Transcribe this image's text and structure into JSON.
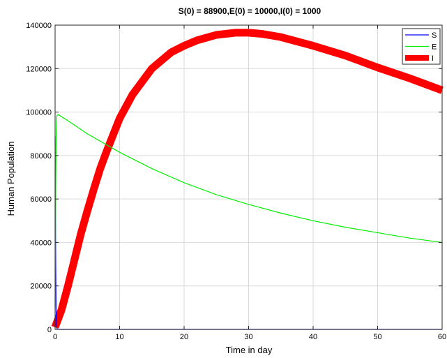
{
  "chart_data": {
    "type": "line",
    "title": "S(0) = 88900,E(0) = 10000,I(0) = 1000",
    "xlabel": "Time in day",
    "ylabel": "Human Population",
    "xlim": [
      0,
      60
    ],
    "ylim": [
      0,
      140000
    ],
    "xticks": [
      0,
      10,
      20,
      30,
      40,
      50,
      60
    ],
    "yticks": [
      0,
      20000,
      40000,
      60000,
      80000,
      100000,
      120000,
      140000
    ],
    "grid": true,
    "legend_position": "top-right",
    "series": [
      {
        "name": "S",
        "color": "#0000ff",
        "line_weight": "thin",
        "x": [
          0,
          0.05,
          0.1,
          0.15,
          0.2,
          0.3,
          0.5,
          1,
          5,
          10,
          20,
          30,
          40,
          50,
          60
        ],
        "y": [
          88900,
          60000,
          30000,
          10000,
          2000,
          200,
          10,
          0,
          0,
          0,
          0,
          0,
          0,
          0,
          0
        ]
      },
      {
        "name": "E",
        "color": "#00ee00",
        "line_weight": "thin",
        "x": [
          0,
          0.05,
          0.1,
          0.15,
          0.2,
          0.3,
          0.5,
          2,
          5,
          10,
          15,
          20,
          25,
          30,
          35,
          40,
          45,
          50,
          55,
          60
        ],
        "y": [
          10000,
          38000,
          66000,
          86000,
          95000,
          98500,
          98800,
          96000,
          90000,
          81500,
          74000,
          67500,
          62000,
          57500,
          53500,
          50000,
          47000,
          44500,
          42000,
          40000
        ]
      },
      {
        "name": "I",
        "color": "#ff0000",
        "line_weight": "thick",
        "x": [
          0,
          1,
          2,
          3,
          4,
          5,
          6,
          7,
          8,
          10,
          12,
          15,
          18,
          20,
          22,
          25,
          28,
          30,
          32,
          35,
          40,
          45,
          50,
          55,
          60
        ],
        "y": [
          1000,
          9000,
          20000,
          32000,
          44000,
          54500,
          64500,
          74000,
          82000,
          97000,
          108000,
          120000,
          127500,
          130500,
          133000,
          135500,
          136500,
          136500,
          136000,
          134500,
          130500,
          126000,
          120500,
          115500,
          110000
        ]
      }
    ]
  }
}
